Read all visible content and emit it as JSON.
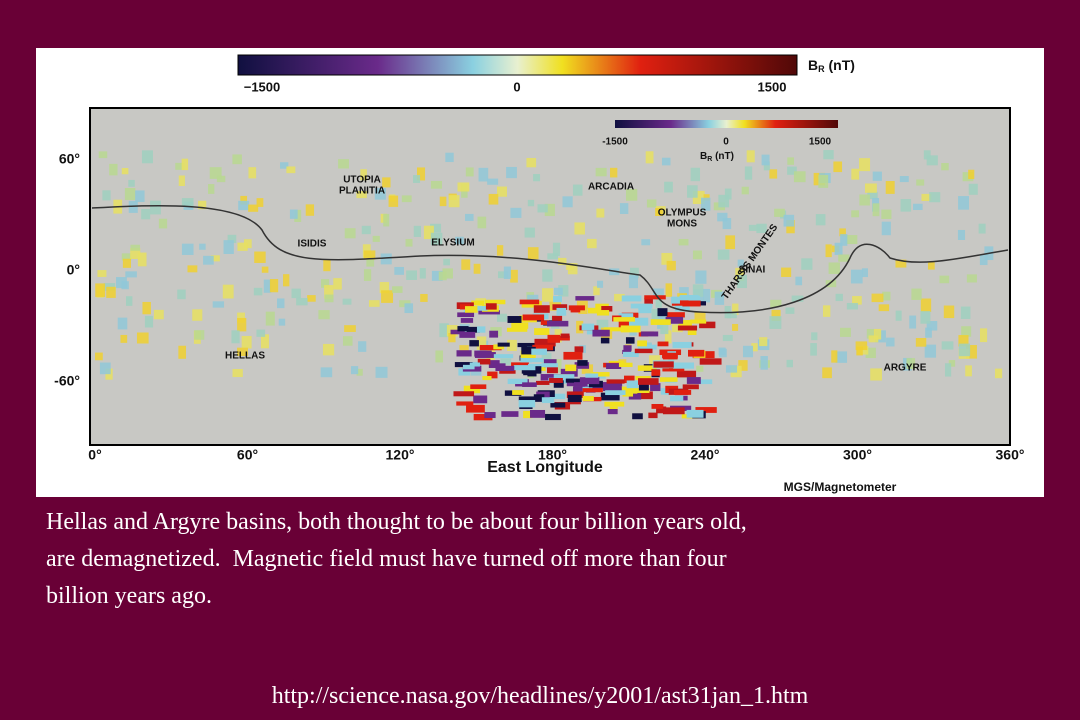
{
  "figure": {
    "colorbar": {
      "min_label": "−1500",
      "mid_label": "0",
      "max_label": "1500",
      "unit": "B",
      "unit_sub": "R",
      "unit_rest": " (nT)"
    },
    "inset_colorbar": {
      "min_label": "-1500",
      "mid_label": "0",
      "max_label": "1500",
      "unit": "B",
      "unit_sub": "R",
      "unit_rest": " (nT)"
    },
    "lat_labels": [
      "60°",
      "0°",
      "-60°"
    ],
    "lon_labels": [
      "0°",
      "60°",
      "120°",
      "180°",
      "240°",
      "300°",
      "360°"
    ],
    "x_axis_title": "East Longitude",
    "credit": "MGS/Magnetometer",
    "regions": [
      "UTOPIA",
      "PLANITIA",
      "ARCADIA",
      "OLYMPUS",
      "MONS",
      "ISIDIS",
      "ELYSIUM",
      "THARSIS MONTES",
      "SINAI",
      "HELLAS",
      "ARGYRE"
    ]
  },
  "caption": [
    "Hellas and Argyre basins, both thought to be about four billion years old,",
    "are demagnetized.  Magnetic field must have turned off more than four",
    "billion years ago."
  ],
  "source_url": "http://science.nasa.gov/headlines/y2001/ast31jan_1.htm"
}
